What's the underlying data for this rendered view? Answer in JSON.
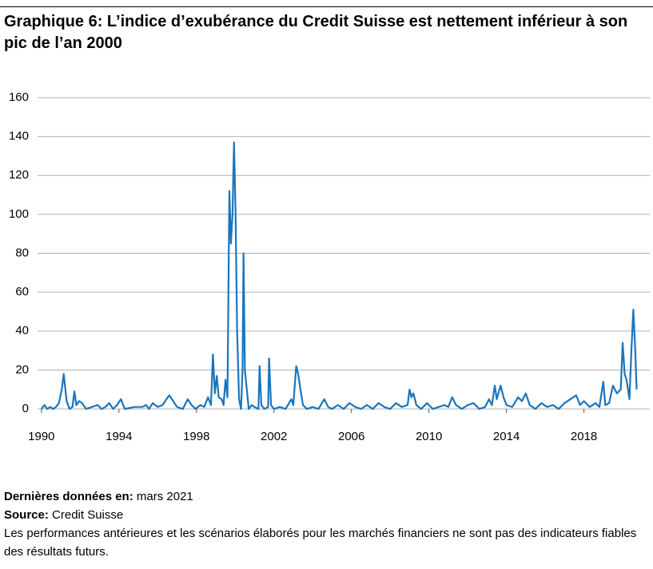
{
  "chart_data": {
    "type": "line",
    "title": "Graphique 6: L’indice d’exubérance du Credit Suisse est nettement inférieur à son pic de l’an 2000",
    "x": [
      1990.0,
      1990.15,
      1990.3,
      1990.45,
      1990.6,
      1990.75,
      1990.9,
      1991.05,
      1991.15,
      1991.3,
      1991.45,
      1991.6,
      1991.7,
      1991.8,
      1991.95,
      1992.1,
      1992.3,
      1992.6,
      1992.9,
      1993.1,
      1993.3,
      1993.5,
      1993.7,
      1993.9,
      1994.1,
      1994.3,
      1994.8,
      1995.2,
      1995.4,
      1995.55,
      1995.75,
      1996.0,
      1996.25,
      1996.45,
      1996.6,
      1996.8,
      1997.0,
      1997.3,
      1997.55,
      1997.75,
      1997.95,
      1998.2,
      1998.4,
      1998.6,
      1998.75,
      1998.85,
      1998.95,
      1999.05,
      1999.15,
      1999.3,
      1999.4,
      1999.5,
      1999.6,
      1999.7,
      1999.78,
      1999.86,
      1999.94,
      2000.02,
      2000.1,
      2000.2,
      2000.3,
      2000.38,
      2000.43,
      2000.5,
      2000.6,
      2000.7,
      2000.85,
      2001.0,
      2001.2,
      2001.26,
      2001.35,
      2001.5,
      2001.7,
      2001.75,
      2001.85,
      2002.0,
      2002.3,
      2002.6,
      2002.9,
      2003.0,
      2003.15,
      2003.25,
      2003.4,
      2003.5,
      2003.7,
      2004.0,
      2004.3,
      2004.6,
      2004.8,
      2005.0,
      2005.3,
      2005.6,
      2005.9,
      2006.2,
      2006.5,
      2006.8,
      2007.1,
      2007.4,
      2007.7,
      2008.0,
      2008.3,
      2008.6,
      2008.9,
      2009.0,
      2009.1,
      2009.2,
      2009.35,
      2009.6,
      2009.9,
      2010.2,
      2010.5,
      2010.8,
      2011.0,
      2011.2,
      2011.4,
      2011.7,
      2012.0,
      2012.3,
      2012.6,
      2012.9,
      2013.1,
      2013.25,
      2013.4,
      2013.5,
      2013.7,
      2013.85,
      2014.0,
      2014.3,
      2014.6,
      2014.8,
      2015.0,
      2015.2,
      2015.5,
      2015.8,
      2016.1,
      2016.4,
      2016.7,
      2017.0,
      2017.3,
      2017.6,
      2017.8,
      2018.0,
      2018.3,
      2018.6,
      2018.8,
      2019.0,
      2019.1,
      2019.3,
      2019.5,
      2019.7,
      2019.9,
      2020.0,
      2020.1,
      2020.2,
      2020.35,
      2020.45,
      2020.55,
      2020.65,
      2020.72
    ],
    "series": [
      {
        "color": "#1b75bc",
        "values": [
          0,
          2,
          0,
          1,
          0,
          1,
          3,
          10,
          18,
          4,
          0,
          1,
          9,
          2,
          4,
          3,
          0,
          1,
          2,
          0,
          1,
          3,
          0,
          2,
          5,
          0,
          1,
          1,
          2,
          0,
          3,
          1,
          2,
          5,
          7,
          4,
          1,
          0,
          5,
          2,
          0,
          2,
          1,
          6,
          2,
          28,
          8,
          17,
          6,
          5,
          2,
          15,
          6,
          112,
          85,
          100,
          137,
          100,
          40,
          5,
          0,
          20,
          80,
          20,
          10,
          0,
          2,
          1,
          0,
          22,
          2,
          0,
          1,
          26,
          2,
          0,
          1,
          0,
          5,
          2,
          22,
          18,
          8,
          2,
          0,
          1,
          0,
          5,
          1,
          0,
          2,
          0,
          3,
          1,
          0,
          2,
          0,
          3,
          1,
          0,
          3,
          1,
          2,
          10,
          6,
          8,
          2,
          0,
          3,
          0,
          1,
          2,
          1,
          6,
          2,
          0,
          2,
          3,
          0,
          1,
          5,
          2,
          12,
          5,
          12,
          6,
          2,
          1,
          6,
          4,
          8,
          2,
          0,
          3,
          1,
          2,
          0,
          3,
          5,
          7,
          2,
          4,
          1,
          3,
          1,
          14,
          2,
          3,
          12,
          8,
          10,
          34,
          18,
          15,
          5,
          30,
          51,
          30,
          10
        ]
      }
    ],
    "xlim": [
      1989.8,
      2021.4
    ],
    "xticks": [
      1990,
      1994,
      1998,
      2002,
      2006,
      2010,
      2014,
      2018
    ],
    "ylim": [
      0,
      160
    ],
    "yticks": [
      0,
      20,
      40,
      60,
      80,
      100,
      120,
      140,
      160
    ],
    "grid": true
  },
  "footer": {
    "last_data_label": "Dernières données en:",
    "last_data_value": "mars 2021",
    "source_label": "Source:",
    "source_value": "Credit Suisse",
    "disclaimer": "Les performances antérieures et les scénarios élaborés pour les marchés financiers ne sont pas des indicateurs fiables des résultats futurs."
  }
}
